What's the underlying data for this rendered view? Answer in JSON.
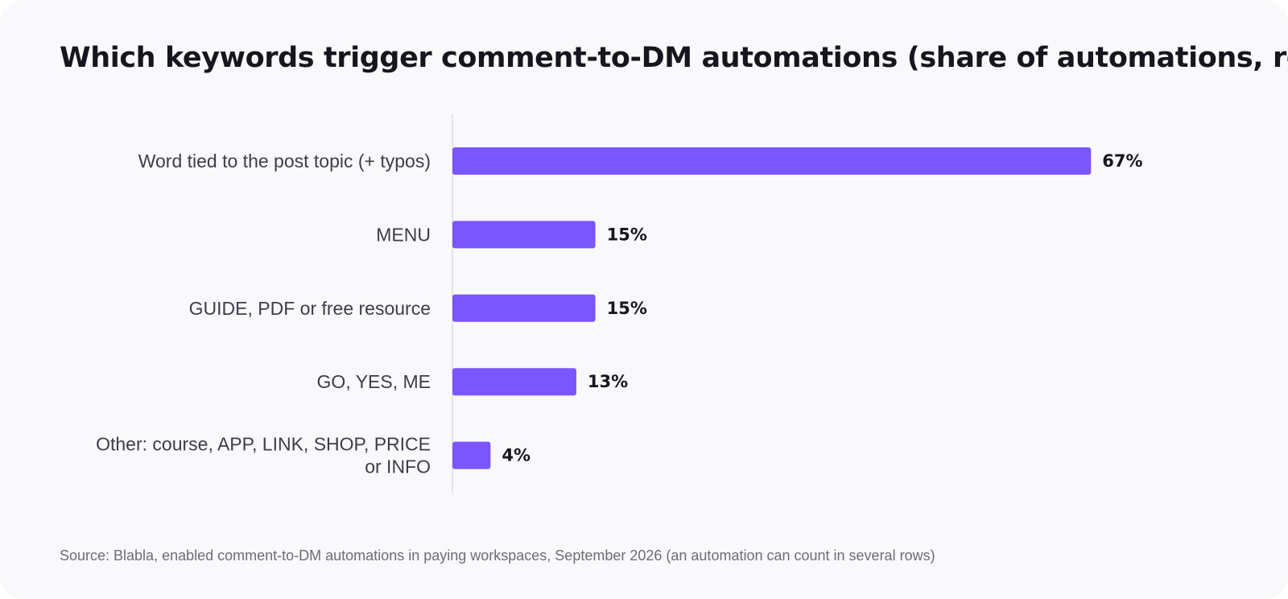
{
  "chart_data": {
    "type": "bar",
    "orientation": "horizontal",
    "title": "Which keywords trigger comment-to-DM automations (share of automations, round",
    "categories": [
      "Word tied to the post topic (+ typos)",
      "MENU",
      "GUIDE, PDF or free resource",
      "GO, YES, ME",
      "Other: course, APP, LINK, SHOP, PRICE or INFO"
    ],
    "category_lines": [
      [
        "Word tied to the post topic (+ typos)"
      ],
      [
        "MENU"
      ],
      [
        "GUIDE, PDF or free resource"
      ],
      [
        "GO, YES, ME"
      ],
      [
        "Other: course, APP, LINK, SHOP, PRICE",
        "or INFO"
      ]
    ],
    "values": [
      67,
      15,
      15,
      13,
      4
    ],
    "value_labels": [
      "67%",
      "15%",
      "15%",
      "13%",
      "4%"
    ],
    "xlim": [
      0,
      100
    ],
    "grid": false,
    "bar_color": "#7a56ff",
    "source": "Source: Blabla, enabled comment-to-DM automations in paying workspaces, September 2026 (an automation can count in several rows)"
  }
}
